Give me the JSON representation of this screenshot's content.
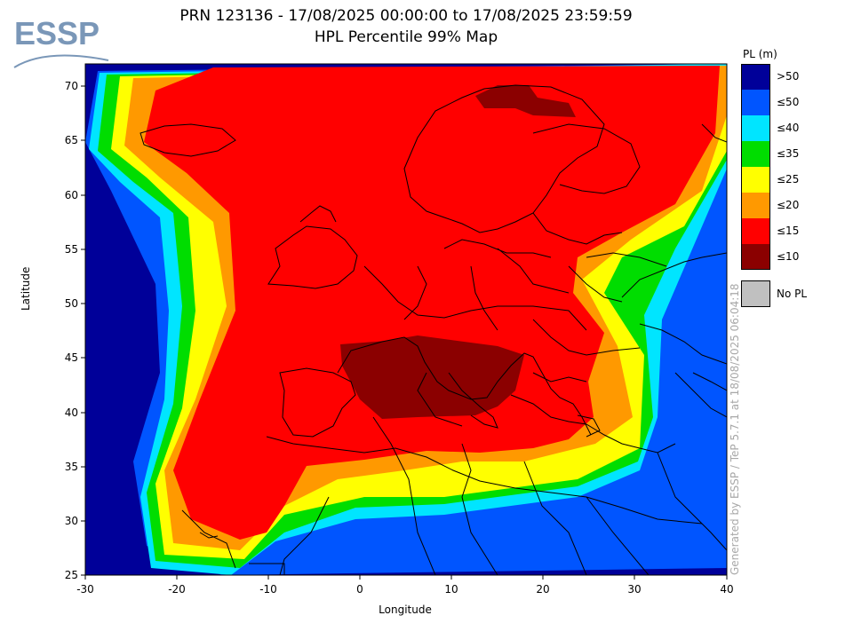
{
  "header": {
    "title_line1": "PRN 123136 - 17/08/2025 00:00:00 to 17/08/2025 23:59:59",
    "title_line2": "HPL Percentile 99% Map"
  },
  "logo": {
    "text": "ESSP"
  },
  "axes": {
    "xlabel": "Longitude",
    "ylabel": "Latitude",
    "x_range": [
      -30,
      40
    ],
    "y_range": [
      25,
      72
    ],
    "x_ticks": [
      "-30",
      "-20",
      "-10",
      "0",
      "10",
      "20",
      "30",
      "40"
    ],
    "y_ticks": [
      "25",
      "30",
      "35",
      "40",
      "45",
      "50",
      "55",
      "60",
      "65",
      "70"
    ]
  },
  "legend": {
    "title": "PL (m)",
    "items": [
      {
        "label": ">50",
        "color": "#000099"
      },
      {
        "label": "≤50",
        "color": "#0055ff"
      },
      {
        "label": "≤40",
        "color": "#00e5ff"
      },
      {
        "label": "≤35",
        "color": "#00dd00"
      },
      {
        "label": "≤25",
        "color": "#ffff00"
      },
      {
        "label": "≤20",
        "color": "#ff9900"
      },
      {
        "label": "≤15",
        "color": "#ff0000"
      },
      {
        "label": "≤10",
        "color": "#8b0000"
      }
    ],
    "no_pl": {
      "label": "No PL",
      "color": "#c0c0c0"
    }
  },
  "watermark": "Generated by ESSP / TeP 5.7.1 at 18/08/2025 06:04:18"
}
